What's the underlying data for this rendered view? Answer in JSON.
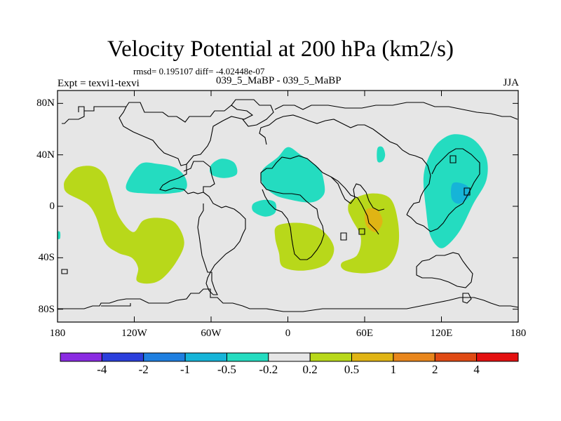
{
  "chart_data": {
    "type": "heatmap",
    "title": "Velocity Potential at 200 hPa (km2/s)",
    "stats_text": "rmsd= 0.195107 diff= -4.02448e-07",
    "left_label": "Expt = texvi1-texvi",
    "center_label": "039_5_MaBP - 039_5_MaBP",
    "right_label": "JJA",
    "x_axis": {
      "range": [
        -180,
        180
      ],
      "ticks": [
        {
          "value": -180,
          "label": "180"
        },
        {
          "value": -120,
          "label": "120W"
        },
        {
          "value": -60,
          "label": "60W"
        },
        {
          "value": 0,
          "label": "0"
        },
        {
          "value": 60,
          "label": "60E"
        },
        {
          "value": 120,
          "label": "120E"
        },
        {
          "value": 180,
          "label": "180"
        }
      ]
    },
    "y_axis": {
      "range": [
        -90,
        90
      ],
      "ticks": [
        {
          "value": 80,
          "label": "80N"
        },
        {
          "value": 40,
          "label": "40N"
        },
        {
          "value": 0,
          "label": "0"
        },
        {
          "value": -40,
          "label": "40S"
        },
        {
          "value": -80,
          "label": "80S"
        }
      ]
    },
    "colorbar": {
      "colors": [
        "#8a2be2",
        "#2b3fdc",
        "#1f7fe0",
        "#16b4d8",
        "#24dcc0",
        "#e6e6e6",
        "#b8d81a",
        "#e0b414",
        "#e8861c",
        "#e04a14",
        "#e41010"
      ],
      "labels": [
        "-4",
        "-2",
        "-1",
        "-0.5",
        "-0.2",
        "0.2",
        "0.5",
        "1",
        "2",
        "4"
      ]
    },
    "regions": [
      {
        "name": "pacific-s-positive",
        "level": "0.2 to 0.5",
        "color": "#b8d81a",
        "outline": [
          [
            -173,
            22
          ],
          [
            -165,
            30
          ],
          [
            -152,
            31
          ],
          [
            -143,
            24
          ],
          [
            -138,
            10
          ],
          [
            -132,
            -8
          ],
          [
            -121,
            -20
          ],
          [
            -113,
            -11
          ],
          [
            -101,
            -9
          ],
          [
            -88,
            -13
          ],
          [
            -81,
            -28
          ],
          [
            -87,
            -43
          ],
          [
            -98,
            -56
          ],
          [
            -108,
            -60
          ],
          [
            -118,
            -58
          ],
          [
            -117,
            -48
          ],
          [
            -122,
            -40
          ],
          [
            -133,
            -36
          ],
          [
            -143,
            -28
          ],
          [
            -150,
            -8
          ],
          [
            -157,
            2
          ],
          [
            -172,
            10
          ],
          [
            -175,
            16
          ]
        ]
      },
      {
        "name": "atlantic-s-positive",
        "level": "0.2 to 0.5",
        "color": "#b8d81a",
        "outline": [
          [
            -8,
            -15
          ],
          [
            10,
            -13
          ],
          [
            26,
            -18
          ],
          [
            36,
            -32
          ],
          [
            30,
            -45
          ],
          [
            12,
            -50
          ],
          [
            -4,
            -47
          ],
          [
            -7,
            -36
          ],
          [
            -10,
            -24
          ]
        ]
      },
      {
        "name": "indian-positive",
        "level": "0.2 to 0.5",
        "color": "#b8d81a",
        "outline": [
          [
            50,
            5
          ],
          [
            65,
            10
          ],
          [
            80,
            6
          ],
          [
            86,
            -12
          ],
          [
            86,
            -32
          ],
          [
            78,
            -47
          ],
          [
            62,
            -52
          ],
          [
            45,
            -50
          ],
          [
            42,
            -44
          ],
          [
            54,
            -38
          ],
          [
            57,
            -24
          ],
          [
            50,
            -10
          ],
          [
            47,
            -2
          ]
        ]
      },
      {
        "name": "indian-positive-core",
        "level": "0.5 to 1",
        "color": "#e0b414",
        "outline": [
          [
            62,
            -2
          ],
          [
            70,
            -3
          ],
          [
            74,
            -12
          ],
          [
            69,
            -20
          ],
          [
            62,
            -16
          ],
          [
            60,
            -8
          ]
        ]
      },
      {
        "name": "n-america-negative",
        "level": "-0.5 to -0.2",
        "color": "#24dcc0",
        "outline": [
          [
            -125,
            20
          ],
          [
            -115,
            33
          ],
          [
            -102,
            33
          ],
          [
            -88,
            30
          ],
          [
            -80,
            22
          ],
          [
            -80,
            13
          ],
          [
            -92,
            10
          ],
          [
            -110,
            10
          ],
          [
            -125,
            12
          ]
        ]
      },
      {
        "name": "n-atlantic-negative",
        "level": "-0.5 to -0.2",
        "color": "#24dcc0",
        "outline": [
          [
            -60,
            32
          ],
          [
            -52,
            37
          ],
          [
            -42,
            34
          ],
          [
            -40,
            25
          ],
          [
            -50,
            22
          ],
          [
            -60,
            25
          ]
        ]
      },
      {
        "name": "s-atlantic-negative-small",
        "level": "-0.5 to -0.2",
        "color": "#24dcc0",
        "outline": [
          [
            -27,
            2
          ],
          [
            -18,
            5
          ],
          [
            -10,
            3
          ],
          [
            -10,
            -5
          ],
          [
            -18,
            -8
          ],
          [
            -27,
            -4
          ]
        ]
      },
      {
        "name": "europe-africa-negative",
        "level": "-0.5 to -0.2",
        "color": "#24dcc0",
        "outline": [
          [
            -20,
            28
          ],
          [
            -8,
            38
          ],
          [
            0,
            46
          ],
          [
            10,
            40
          ],
          [
            24,
            30
          ],
          [
            28,
            20
          ],
          [
            28,
            9
          ],
          [
            18,
            3
          ],
          [
            -2,
            6
          ],
          [
            -12,
            10
          ],
          [
            -20,
            18
          ]
        ]
      },
      {
        "name": "caspian-negative",
        "level": "-0.5 to -0.2",
        "color": "#24dcc0",
        "outline": [
          [
            70,
            45
          ],
          [
            74,
            46
          ],
          [
            76,
            40
          ],
          [
            74,
            35
          ],
          [
            70,
            35
          ]
        ]
      },
      {
        "name": "w-pacific-negative",
        "level": "-0.5 to -0.2",
        "color": "#24dcc0",
        "outline": [
          [
            118,
            50
          ],
          [
            130,
            56
          ],
          [
            145,
            52
          ],
          [
            155,
            38
          ],
          [
            155,
            20
          ],
          [
            145,
            2
          ],
          [
            135,
            -18
          ],
          [
            125,
            -30
          ],
          [
            118,
            -32
          ],
          [
            111,
            -22
          ],
          [
            108,
            -3
          ],
          [
            106,
            22
          ],
          [
            110,
            38
          ]
        ]
      },
      {
        "name": "w-pacific-negative-core",
        "level": "-1 to -0.5",
        "color": "#16b4d8",
        "outline": [
          [
            129,
            18
          ],
          [
            140,
            16
          ],
          [
            142,
            8
          ],
          [
            134,
            2
          ],
          [
            128,
            6
          ]
        ]
      },
      {
        "name": "e-pacific-negative-sliver",
        "level": "-0.5 to -0.2",
        "color": "#24dcc0",
        "outline": [
          [
            -180,
            -20
          ],
          [
            -178,
            -20
          ],
          [
            -178,
            -25
          ],
          [
            -180,
            -25
          ]
        ]
      }
    ]
  }
}
